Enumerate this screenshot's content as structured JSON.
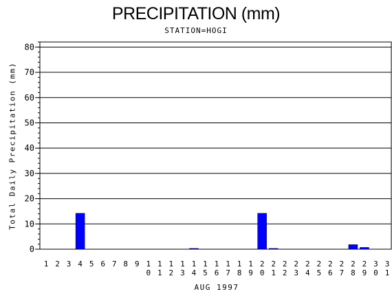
{
  "chart_data": {
    "type": "bar",
    "title": "PRECIPITATION (mm)",
    "subtitle": "STATION=HOGI",
    "ylabel": "Total Daily Precipitation (mm)",
    "xlabel": "AUG 1997",
    "ylim": [
      0,
      82
    ],
    "yticks": [
      0,
      10,
      20,
      30,
      40,
      50,
      60,
      70,
      80
    ],
    "grid": true,
    "bar_color": "#0000ff",
    "categories": [
      "1",
      "2",
      "3",
      "4",
      "5",
      "6",
      "7",
      "8",
      "9",
      "10",
      "11",
      "12",
      "13",
      "14",
      "15",
      "16",
      "17",
      "18",
      "19",
      "20",
      "21",
      "22",
      "23",
      "24",
      "25",
      "26",
      "27",
      "28",
      "29",
      "30",
      "31"
    ],
    "values": [
      0,
      0,
      0,
      14.2,
      0,
      0,
      0,
      0,
      0,
      0,
      0,
      0,
      0,
      0.3,
      0,
      0,
      0,
      0,
      0,
      14.2,
      0.3,
      0,
      0,
      0,
      0,
      0,
      0,
      1.8,
      0.7,
      0,
      0
    ]
  }
}
